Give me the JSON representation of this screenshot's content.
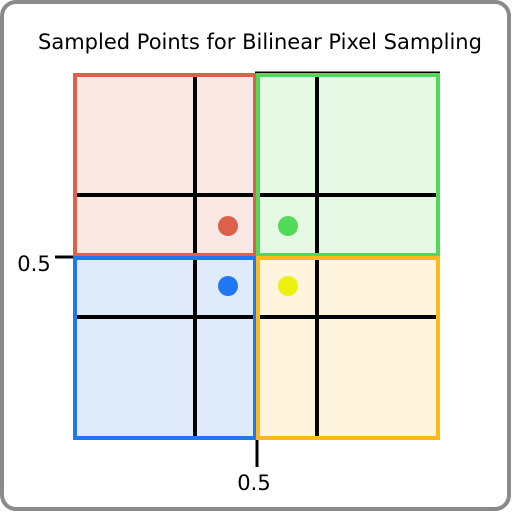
{
  "title": "Sampled Points for Bilinear Pixel Sampling",
  "axis_labels": {
    "left": "0.5",
    "bottom": "0.5"
  },
  "cells": [
    {
      "id": "top-left",
      "stroke": "#dd614a",
      "fill": "#f9e7e3"
    },
    {
      "id": "top-right",
      "stroke": "#52d95a",
      "fill": "#e6f9e5"
    },
    {
      "id": "bottom-left",
      "stroke": "#1f77f4",
      "fill": "#dfeafb"
    },
    {
      "id": "bottom-right",
      "stroke": "#ffb81c",
      "fill": "#fff4de"
    }
  ],
  "points": [
    {
      "id": "red",
      "color": "#dd614a"
    },
    {
      "id": "green",
      "color": "#52d95a"
    },
    {
      "id": "blue",
      "color": "#1f77f4"
    },
    {
      "id": "yellow",
      "color": "#ecf20f"
    }
  ],
  "colors": {
    "frame": "#8a8a8a",
    "grid": "#000000"
  }
}
